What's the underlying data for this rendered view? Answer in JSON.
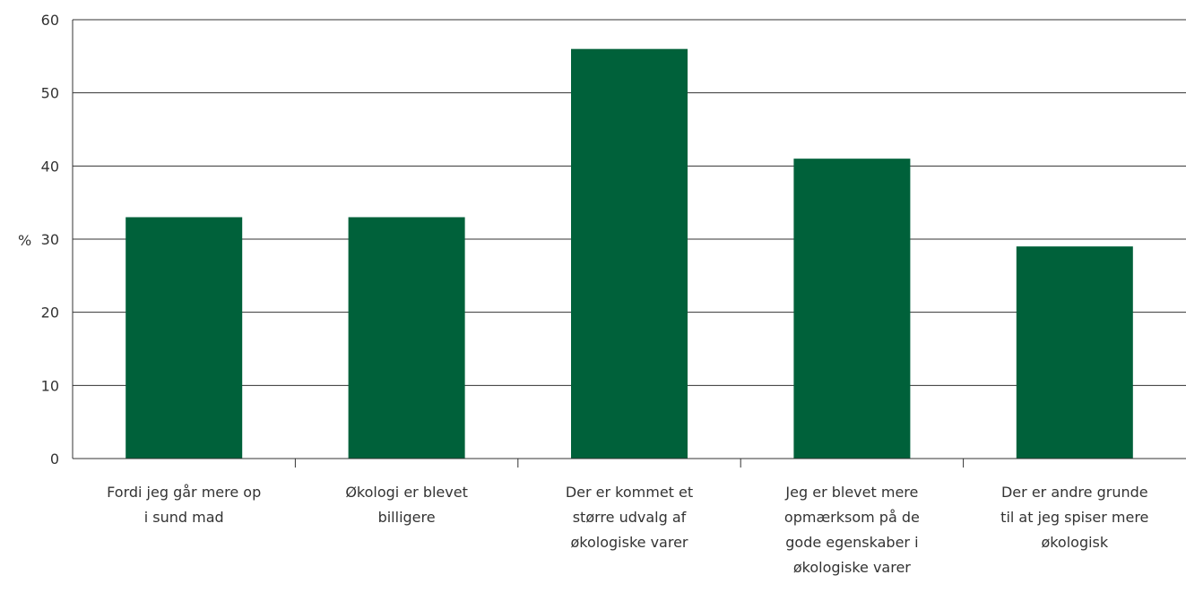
{
  "chart_data": {
    "type": "bar",
    "categories": [
      "Fordi jeg går mere op\ni sund mad",
      "Økologi er blevet\nbilligere",
      "Der er kommet et\nstørre udvalg af\nøkologiske varer",
      "Jeg er blevet mere\nopmærksom på de\ngode egenskaber i\nøkologiske varer",
      "Der er andre grunde\ntil at jeg spiser mere\nøkologisk"
    ],
    "values": [
      33,
      33,
      56,
      41,
      29
    ],
    "ylabel": "%",
    "ylim": [
      0,
      60
    ],
    "yticks": [
      0,
      10,
      20,
      30,
      40,
      50,
      60
    ],
    "grid": true,
    "bar_color": "#00613a"
  }
}
